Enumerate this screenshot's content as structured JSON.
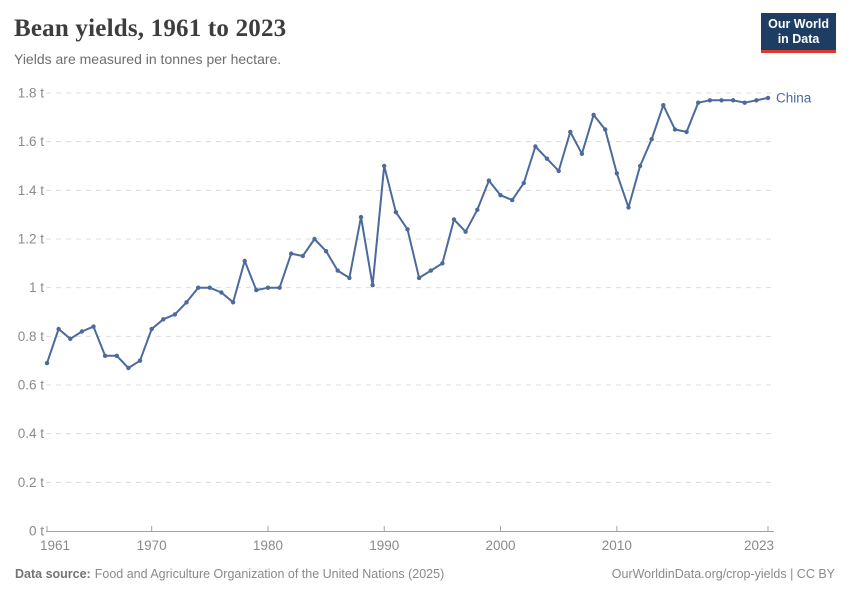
{
  "header": {
    "title": "Bean yields, 1961 to 2023",
    "subtitle": "Yields are measured in tonnes per hectare.",
    "logo_line1": "Our World",
    "logo_line2": "in Data"
  },
  "chart_data": {
    "type": "line",
    "title": "Bean yields, 1961 to 2023",
    "subtitle": "Yields are measured in tonnes per hectare.",
    "unit": "t",
    "xlim": [
      1961,
      2023
    ],
    "ylim": [
      0,
      1.8
    ],
    "y_ticks": [
      0,
      0.2,
      0.4,
      0.6,
      0.8,
      1,
      1.2,
      1.4,
      1.6,
      1.8
    ],
    "x_ticks": [
      1961,
      1970,
      1980,
      1990,
      2000,
      2010,
      2023
    ],
    "x_tick_labels": [
      1961,
      1970,
      1980,
      1990,
      2000,
      2010,
      2023
    ],
    "grid": "horizontal-dashed",
    "legend": "end-of-line-label",
    "series": [
      {
        "name": "China",
        "color": "#4c6a9c",
        "years": [
          1961,
          1962,
          1963,
          1964,
          1965,
          1966,
          1967,
          1968,
          1969,
          1970,
          1971,
          1972,
          1973,
          1974,
          1975,
          1976,
          1977,
          1978,
          1979,
          1980,
          1981,
          1982,
          1983,
          1984,
          1985,
          1986,
          1987,
          1988,
          1989,
          1990,
          1991,
          1992,
          1993,
          1994,
          1995,
          1996,
          1997,
          1998,
          1999,
          2000,
          2001,
          2002,
          2003,
          2004,
          2005,
          2006,
          2007,
          2008,
          2009,
          2010,
          2011,
          2012,
          2013,
          2014,
          2015,
          2016,
          2017,
          2018,
          2019,
          2020,
          2021,
          2022,
          2023
        ],
        "values": [
          0.69,
          0.83,
          0.79,
          0.82,
          0.84,
          0.72,
          0.72,
          0.67,
          0.7,
          0.83,
          0.87,
          0.89,
          0.94,
          1.0,
          1.0,
          0.98,
          0.94,
          1.11,
          0.99,
          1.0,
          1.0,
          1.14,
          1.13,
          1.2,
          1.15,
          1.07,
          1.04,
          1.29,
          1.01,
          1.5,
          1.31,
          1.24,
          1.04,
          1.07,
          1.1,
          1.28,
          1.23,
          1.32,
          1.44,
          1.38,
          1.36,
          1.43,
          1.58,
          1.53,
          1.48,
          1.64,
          1.55,
          1.71,
          1.65,
          1.47,
          1.33,
          1.5,
          1.61,
          1.75,
          1.65,
          1.64,
          1.76,
          1.77,
          1.77,
          1.77,
          1.76,
          1.77,
          1.78
        ]
      }
    ]
  },
  "footer": {
    "datasource_label": "Data source:",
    "datasource": "Food and Agriculture Organization of the United Nations (2025)",
    "credit": "OurWorldinData.org/crop-yields | CC BY"
  },
  "colors": {
    "line": "#4c6a9c",
    "grid": "#dcdcdc",
    "axis": "#a3a3a3",
    "tick_label": "#8a8a8a",
    "title": "#3d3d3d",
    "subtitle": "#6e6e6e",
    "footer_text": "#8a8a8a",
    "logo_bg": "#1d3d63",
    "logo_red": "#dc3a2c"
  }
}
